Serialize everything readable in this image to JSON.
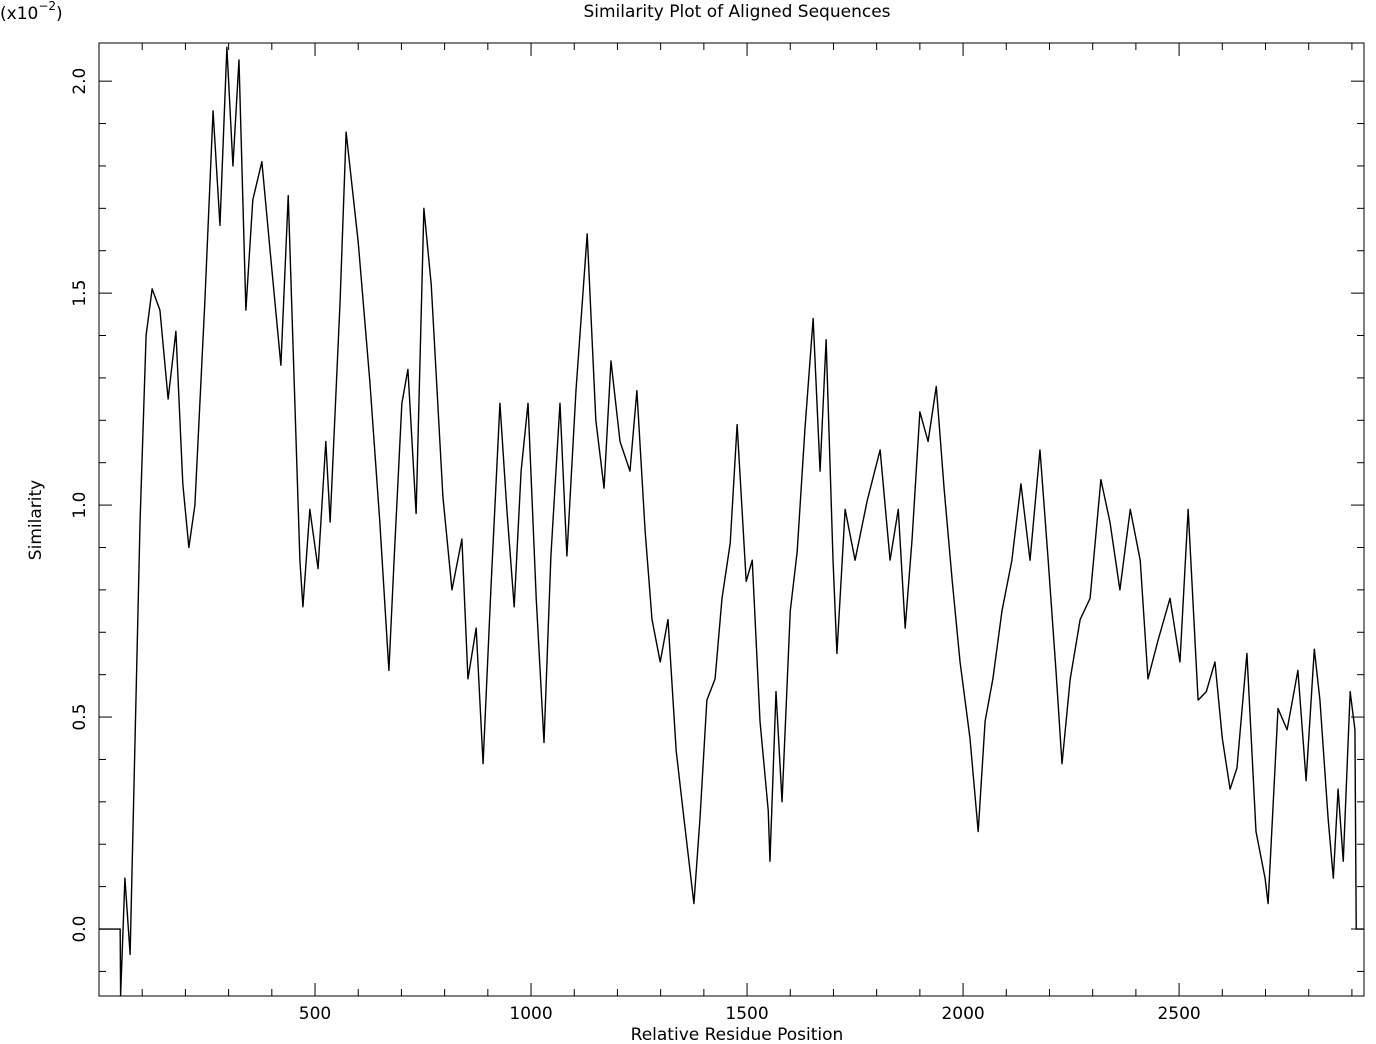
{
  "chart_data": {
    "type": "line",
    "title": "Similarity Plot of Aligned Sequences",
    "x_label": "Relative Residue Position",
    "y_label": "Similarity",
    "y_scale_label": {
      "base": "(x10",
      "exponent": "−2",
      "close": ")"
    },
    "xlim": [
      0,
      2928
    ],
    "ylim": [
      -0.158,
      2.09
    ],
    "xticks": [
      500,
      1000,
      1500,
      2000,
      2500
    ],
    "yticks": [
      {
        "value": 0,
        "label": "0.0"
      },
      0.5,
      {
        "value": 1,
        "label": "1.0"
      },
      1.5,
      {
        "value": 2,
        "label": "2.0"
      }
    ],
    "x_minor_ticks": [
      100,
      200,
      300,
      400,
      600,
      700,
      800,
      900,
      1100,
      1200,
      1300,
      1400,
      1600,
      1700,
      1800,
      1900,
      2100,
      2200,
      2300,
      2400,
      2600,
      2700,
      2800,
      2900
    ],
    "y_minor_ticks": [
      -0.1,
      0.1,
      0.2,
      0.3,
      0.4,
      0.6,
      0.7,
      0.8,
      0.9,
      1.1,
      1.2,
      1.3,
      1.4,
      1.6,
      1.7,
      1.8,
      1.9
    ],
    "color": "#000000",
    "x": [
      0,
      49,
      50,
      60,
      72,
      95,
      109,
      123,
      141,
      160,
      178,
      194,
      208,
      222,
      245,
      264,
      280,
      296,
      310,
      324,
      340,
      356,
      377,
      396,
      421,
      438,
      465,
      472,
      488,
      507,
      525,
      535,
      558,
      572,
      600,
      627,
      650,
      671,
      683,
      701,
      715,
      734,
      752,
      769,
      796,
      817,
      840,
      854,
      873,
      889,
      907,
      928,
      944,
      961,
      977,
      993,
      1012,
      1030,
      1046,
      1067,
      1083,
      1104,
      1130,
      1150,
      1169,
      1185,
      1206,
      1229,
      1245,
      1264,
      1280,
      1299,
      1317,
      1336,
      1354,
      1377,
      1391,
      1407,
      1426,
      1442,
      1461,
      1477,
      1498,
      1512,
      1530,
      1549,
      1553,
      1567,
      1581,
      1600,
      1616,
      1634,
      1653,
      1669,
      1683,
      1699,
      1708,
      1727,
      1750,
      1778,
      1808,
      1831,
      1850,
      1866,
      1882,
      1900,
      1919,
      1938,
      1956,
      1975,
      1993,
      2016,
      2035,
      2051,
      2069,
      2090,
      2113,
      2134,
      2155,
      2178,
      2197,
      2215,
      2229,
      2248,
      2271,
      2294,
      2319,
      2340,
      2363,
      2387,
      2410,
      2428,
      2451,
      2479,
      2502,
      2521,
      2544,
      2563,
      2583,
      2600,
      2618,
      2634,
      2657,
      2678,
      2699,
      2706,
      2729,
      2750,
      2775,
      2794,
      2813,
      2826,
      2845,
      2857,
      2868,
      2880,
      2896,
      2907,
      2910,
      2928
    ],
    "series": [
      {
        "values": [
          0,
          0,
          -0.158,
          0.12,
          -0.06,
          0.96,
          1.4,
          1.51,
          1.46,
          1.25,
          1.41,
          1.05,
          0.9,
          1.0,
          1.48,
          1.93,
          1.66,
          2.08,
          1.8,
          2.05,
          1.46,
          1.72,
          1.81,
          1.6,
          1.33,
          1.73,
          0.87,
          0.76,
          0.99,
          0.85,
          1.15,
          0.96,
          1.48,
          1.88,
          1.62,
          1.29,
          0.96,
          0.61,
          0.87,
          1.24,
          1.32,
          0.98,
          1.7,
          1.52,
          1.02,
          0.8,
          0.92,
          0.59,
          0.71,
          0.39,
          0.8,
          1.24,
          0.99,
          0.76,
          1.08,
          1.24,
          0.78,
          0.44,
          0.88,
          1.24,
          0.88,
          1.27,
          1.64,
          1.2,
          1.04,
          1.34,
          1.15,
          1.08,
          1.27,
          0.94,
          0.73,
          0.63,
          0.73,
          0.42,
          0.26,
          0.06,
          0.26,
          0.54,
          0.59,
          0.78,
          0.91,
          1.19,
          0.82,
          0.87,
          0.49,
          0.28,
          0.16,
          0.56,
          0.3,
          0.75,
          0.89,
          1.18,
          1.44,
          1.08,
          1.39,
          0.87,
          0.65,
          0.99,
          0.87,
          1.01,
          1.13,
          0.87,
          0.99,
          0.71,
          0.92,
          1.22,
          1.15,
          1.28,
          1.04,
          0.82,
          0.63,
          0.45,
          0.23,
          0.49,
          0.59,
          0.75,
          0.87,
          1.05,
          0.87,
          1.13,
          0.87,
          0.61,
          0.39,
          0.59,
          0.73,
          0.78,
          1.06,
          0.96,
          0.8,
          0.99,
          0.87,
          0.59,
          0.68,
          0.78,
          0.63,
          0.99,
          0.54,
          0.56,
          0.63,
          0.45,
          0.33,
          0.38,
          0.65,
          0.23,
          0.12,
          0.06,
          0.52,
          0.47,
          0.61,
          0.35,
          0.66,
          0.54,
          0.26,
          0.12,
          0.33,
          0.16,
          0.56,
          0.47,
          0,
          0
        ]
      }
    ]
  }
}
